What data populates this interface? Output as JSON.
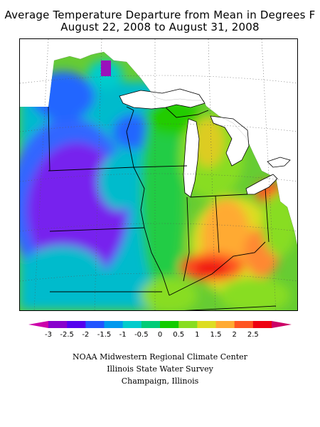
{
  "title": {
    "line1": "Average Temperature Departure from Mean in Degrees F",
    "line2": "August 22, 2008 to August 31, 2008"
  },
  "legend": {
    "tick_labels": [
      "-3",
      "-2.5",
      "-2",
      "-1.5",
      "-1",
      "-0.5",
      "0",
      "0.5",
      "1",
      "1.5",
      "2",
      "2.5"
    ],
    "colors": [
      "#8800cc",
      "#5500ee",
      "#2255ff",
      "#0099ee",
      "#00cccc",
      "#00cc77",
      "#11cc00",
      "#88dd22",
      "#dddd22",
      "#ffaa33",
      "#ff5522",
      "#ee0011"
    ],
    "under_color": "#cc00aa",
    "over_color": "#cc0066"
  },
  "credits": {
    "line1": "NOAA Midwestern Regional Climate Center",
    "line2": "Illinois State Water Survey",
    "line3": "Champaign, Illinois"
  }
}
